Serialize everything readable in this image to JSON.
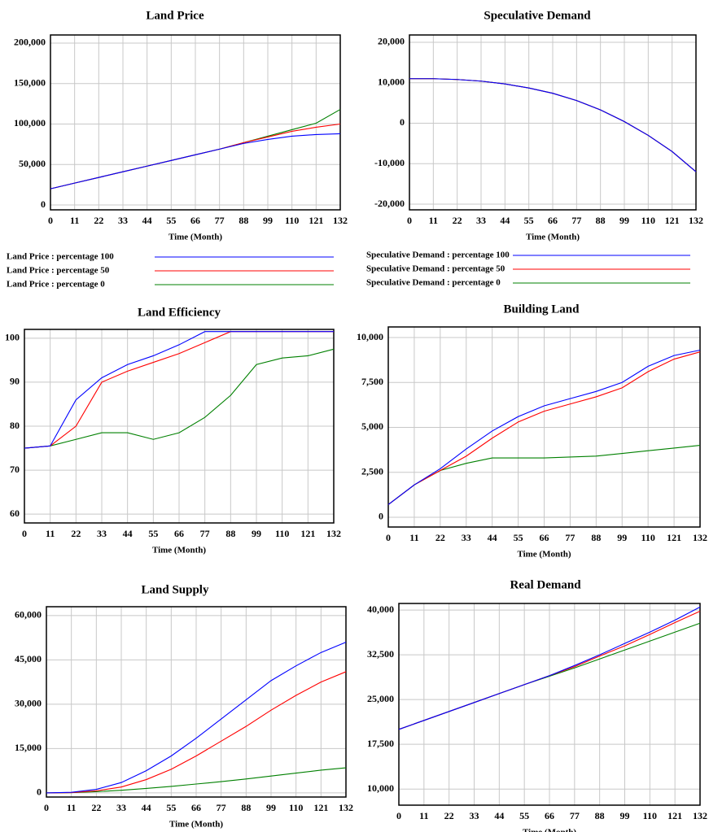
{
  "chart_data": [
    {
      "type": "line",
      "title": "Land Price",
      "x_label": "Time (Month)",
      "x": [
        0,
        11,
        22,
        33,
        44,
        55,
        66,
        77,
        88,
        99,
        110,
        121,
        132
      ],
      "xlim": [
        0,
        132
      ],
      "xticks": [
        0,
        11,
        22,
        33,
        44,
        55,
        66,
        77,
        88,
        99,
        110,
        121,
        132
      ],
      "ylim": [
        -6000,
        210000
      ],
      "yticks": [
        0,
        {
          "value": 50000,
          "label": "50,000"
        },
        {
          "value": 100000,
          "label": "100,000"
        },
        {
          "value": 150000,
          "label": "150,000"
        },
        {
          "value": 200000,
          "label": "200,000"
        }
      ],
      "grid": true,
      "legend": "bottom",
      "series": [
        {
          "name": "Land Price : percentage 100",
          "color": "#0000ff",
          "values": [
            20000,
            27000,
            34000,
            41000,
            48000,
            55000,
            62000,
            69000,
            76000,
            81000,
            85000,
            87000,
            88000
          ]
        },
        {
          "name": "Land Price : percentage 50",
          "color": "#ff0000",
          "values": [
            20000,
            27000,
            34000,
            41000,
            48000,
            55000,
            62000,
            69000,
            77000,
            84000,
            91000,
            96000,
            100000
          ]
        },
        {
          "name": "Land Price : percentage 0",
          "color": "#008000",
          "values": [
            20000,
            27000,
            34000,
            41000,
            48000,
            55000,
            62000,
            69000,
            77000,
            85000,
            93000,
            101000,
            118000
          ]
        }
      ]
    },
    {
      "type": "line",
      "title": "Speculative Demand",
      "x_label": "Time (Month)",
      "x": [
        0,
        11,
        22,
        33,
        44,
        55,
        66,
        77,
        88,
        99,
        110,
        121,
        132
      ],
      "xlim": [
        0,
        132
      ],
      "xticks": [
        0,
        11,
        22,
        33,
        44,
        55,
        66,
        77,
        88,
        99,
        110,
        121,
        132
      ],
      "ylim": [
        -21400,
        21800
      ],
      "yticks": [
        {
          "value": -20000,
          "label": "-20,000"
        },
        {
          "value": -10000,
          "label": "-10,000"
        },
        0,
        {
          "value": 10000,
          "label": "10,000"
        },
        {
          "value": 20000,
          "label": "20,000"
        }
      ],
      "grid": true,
      "legend": "bottom",
      "series": [
        {
          "name": "Speculative Demand : percentage 100",
          "color": "#0000ff",
          "values": [
            11000,
            11000,
            10800,
            10400,
            9700,
            8700,
            7400,
            5600,
            3300,
            400,
            -3000,
            -7000,
            -12000
          ]
        },
        {
          "name": "Speculative Demand : percentage 50",
          "color": "#ff0000",
          "values": [
            11000,
            11000,
            10800,
            10400,
            9700,
            8700,
            7400,
            5600,
            3300,
            400,
            -3000,
            -7000,
            -12000
          ]
        },
        {
          "name": "Speculative Demand : percentage 0",
          "color": "#008000",
          "values": [
            11000,
            11000,
            10800,
            10400,
            9700,
            8700,
            7400,
            5600,
            3300,
            400,
            -3000,
            -7000,
            -12000
          ]
        }
      ]
    },
    {
      "type": "line",
      "title": "Land Efficiency",
      "x_label": "Time (Month)",
      "x": [
        0,
        11,
        22,
        33,
        44,
        55,
        66,
        77,
        88,
        99,
        110,
        121,
        132
      ],
      "xlim": [
        0,
        132
      ],
      "xticks": [
        0,
        11,
        22,
        33,
        44,
        55,
        66,
        77,
        88,
        99,
        110,
        121,
        132
      ],
      "ylim": [
        58,
        102
      ],
      "yticks": [
        60,
        70,
        80,
        90,
        100
      ],
      "grid": true,
      "series": [
        {
          "color": "#0000ff",
          "values": [
            75,
            75.5,
            86,
            91,
            94,
            96,
            98.5,
            101.5,
            101.5,
            101.5,
            101.5,
            101.5,
            101.5
          ]
        },
        {
          "color": "#ff0000",
          "values": [
            75,
            75.5,
            80,
            90,
            92.5,
            94.5,
            96.5,
            99,
            101.5,
            101.5,
            101.5,
            101.5,
            101.5
          ]
        },
        {
          "color": "#008000",
          "values": [
            75,
            75.5,
            77,
            78.5,
            78.5,
            77,
            78.5,
            82,
            87,
            94,
            95.5,
            96,
            97.5
          ]
        }
      ]
    },
    {
      "type": "line",
      "title": "Building Land",
      "x_label": "Time (Month)",
      "x": [
        0,
        11,
        22,
        33,
        44,
        55,
        66,
        77,
        88,
        99,
        110,
        121,
        132
      ],
      "xlim": [
        0,
        132
      ],
      "xticks": [
        0,
        11,
        22,
        33,
        44,
        55,
        66,
        77,
        88,
        99,
        110,
        121,
        132
      ],
      "ylim": [
        -545,
        10590
      ],
      "yticks": [
        0,
        {
          "value": 2500,
          "label": "2,500"
        },
        {
          "value": 5000,
          "label": "5,000"
        },
        {
          "value": 7500,
          "label": "7,500"
        },
        {
          "value": 10000,
          "label": "10,000"
        }
      ],
      "grid": true,
      "series": [
        {
          "color": "#0000ff",
          "values": [
            700,
            1800,
            2700,
            3800,
            4800,
            5600,
            6200,
            6600,
            7000,
            7500,
            8400,
            9000,
            9300
          ]
        },
        {
          "color": "#ff0000",
          "values": [
            700,
            1800,
            2600,
            3400,
            4400,
            5300,
            5900,
            6300,
            6700,
            7200,
            8100,
            8800,
            9200
          ]
        },
        {
          "color": "#008000",
          "values": [
            700,
            1800,
            2600,
            3000,
            3300,
            3300,
            3300,
            3350,
            3400,
            3550,
            3700,
            3850,
            4000
          ]
        }
      ]
    },
    {
      "type": "line",
      "title": "Land Supply",
      "x_label": "Time (Month)",
      "x": [
        0,
        11,
        22,
        33,
        44,
        55,
        66,
        77,
        88,
        99,
        110,
        121,
        132
      ],
      "xlim": [
        0,
        132
      ],
      "xticks": [
        0,
        11,
        22,
        33,
        44,
        55,
        66,
        77,
        88,
        99,
        110,
        121,
        132
      ],
      "ylim": [
        -1400,
        63000
      ],
      "yticks": [
        0,
        {
          "value": 15000,
          "label": "15,000"
        },
        {
          "value": 30000,
          "label": "30,000"
        },
        {
          "value": 45000,
          "label": "45,000"
        },
        {
          "value": 60000,
          "label": "60,000"
        }
      ],
      "grid": true,
      "series": [
        {
          "color": "#0000ff",
          "values": [
            0,
            200,
            1200,
            3500,
            7500,
            12500,
            18500,
            25000,
            31500,
            38000,
            43000,
            47500,
            51000
          ]
        },
        {
          "color": "#ff0000",
          "values": [
            0,
            100,
            700,
            2000,
            4500,
            8000,
            12500,
            17500,
            22500,
            28000,
            33000,
            37500,
            41000
          ]
        },
        {
          "color": "#008000",
          "values": [
            0,
            100,
            400,
            900,
            1500,
            2200,
            3000,
            3800,
            4700,
            5700,
            6700,
            7700,
            8500
          ]
        }
      ]
    },
    {
      "type": "line",
      "title": "Real Demand",
      "x_label": "Time (Month)",
      "x": [
        0,
        11,
        22,
        33,
        44,
        55,
        66,
        77,
        88,
        99,
        110,
        121,
        132
      ],
      "xlim": [
        0,
        132
      ],
      "xticks": [
        0,
        11,
        22,
        33,
        44,
        55,
        66,
        77,
        88,
        99,
        110,
        121,
        132
      ],
      "ylim": [
        7300,
        41100
      ],
      "yticks": [
        {
          "value": 10000,
          "label": "10,000"
        },
        {
          "value": 17500,
          "label": "17,500"
        },
        {
          "value": 25000,
          "label": "25,000"
        },
        {
          "value": 32500,
          "label": "32,500"
        },
        {
          "value": 40000,
          "label": "40,000"
        }
      ],
      "grid": true,
      "series": [
        {
          "color": "#0000ff",
          "values": [
            20000,
            21500,
            23000,
            24500,
            26000,
            27500,
            29000,
            30700,
            32500,
            34400,
            36300,
            38300,
            40500
          ]
        },
        {
          "color": "#ff0000",
          "values": [
            20000,
            21500,
            23000,
            24500,
            26000,
            27500,
            29000,
            30500,
            32300,
            34000,
            35900,
            37900,
            39800
          ]
        },
        {
          "color": "#008000",
          "values": [
            20000,
            21500,
            23000,
            24500,
            26000,
            27500,
            28900,
            30300,
            31800,
            33300,
            34800,
            36300,
            37800
          ]
        }
      ]
    }
  ]
}
